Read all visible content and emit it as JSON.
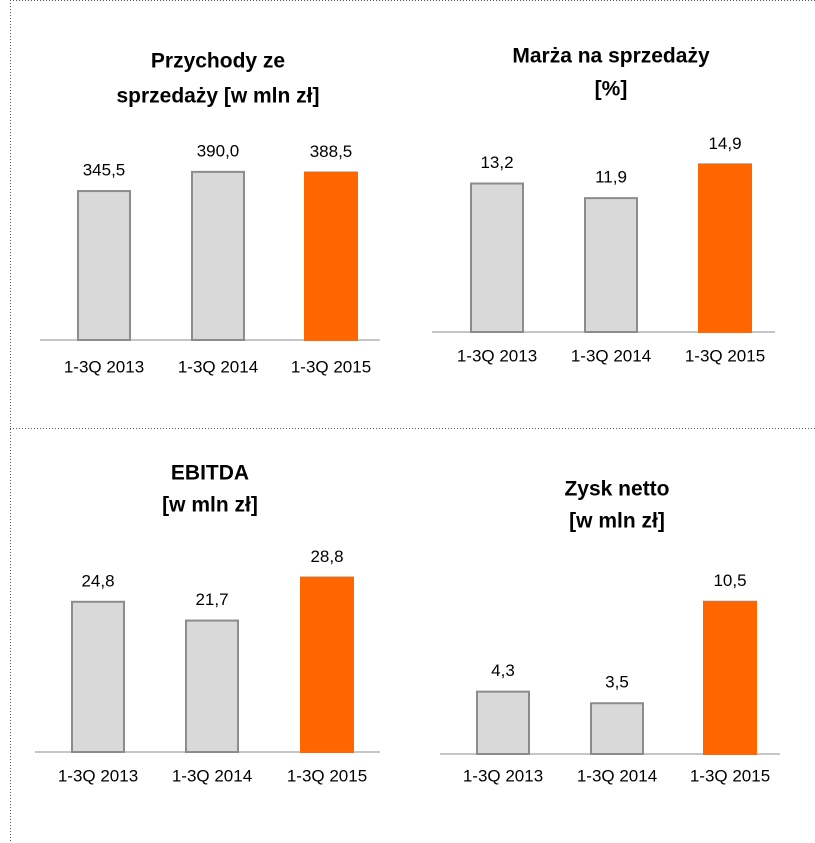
{
  "chart_data": [
    {
      "type": "bar",
      "title": [
        "Przychody ze",
        "sprzedaży [w mln zł]"
      ],
      "categories": [
        "1-3Q 2013",
        "1-3Q 2014",
        "1-3Q 2015"
      ],
      "values": [
        345.5,
        390.0,
        388.5
      ],
      "value_labels": [
        "345,5",
        "390,0",
        "388,5"
      ],
      "colors": [
        "#d9d9d9",
        "#d9d9d9",
        "#ff6600"
      ],
      "ylim": [
        0,
        450
      ]
    },
    {
      "type": "bar",
      "title": [
        "Marża na sprzedaży",
        "[%]"
      ],
      "categories": [
        "1-3Q 2013",
        "1-3Q 2014",
        "1-3Q 2015"
      ],
      "values": [
        13.2,
        11.9,
        14.9
      ],
      "value_labels": [
        "13,2",
        "11,9",
        "14,9"
      ],
      "colors": [
        "#d9d9d9",
        "#d9d9d9",
        "#ff6600"
      ],
      "ylim": [
        0,
        16
      ]
    },
    {
      "type": "bar",
      "title": [
        "EBITDA",
        "[w mln zł]"
      ],
      "categories": [
        "1-3Q 2013",
        "1-3Q 2014",
        "1-3Q 2015"
      ],
      "values": [
        24.8,
        21.7,
        28.8
      ],
      "value_labels": [
        "24,8",
        "21,7",
        "28,8"
      ],
      "colors": [
        "#d9d9d9",
        "#d9d9d9",
        "#ff6600"
      ],
      "ylim": [
        0,
        35
      ]
    },
    {
      "type": "bar",
      "title": [
        "Zysk netto",
        "[w mln zł]"
      ],
      "categories": [
        "1-3Q 2013",
        "1-3Q 2014",
        "1-3Q 2015"
      ],
      "values": [
        4.3,
        3.5,
        10.5
      ],
      "value_labels": [
        "4,3",
        "3,5",
        "10,5"
      ],
      "colors": [
        "#d9d9d9",
        "#d9d9d9",
        "#ff6600"
      ],
      "ylim": [
        0,
        12
      ]
    }
  ]
}
